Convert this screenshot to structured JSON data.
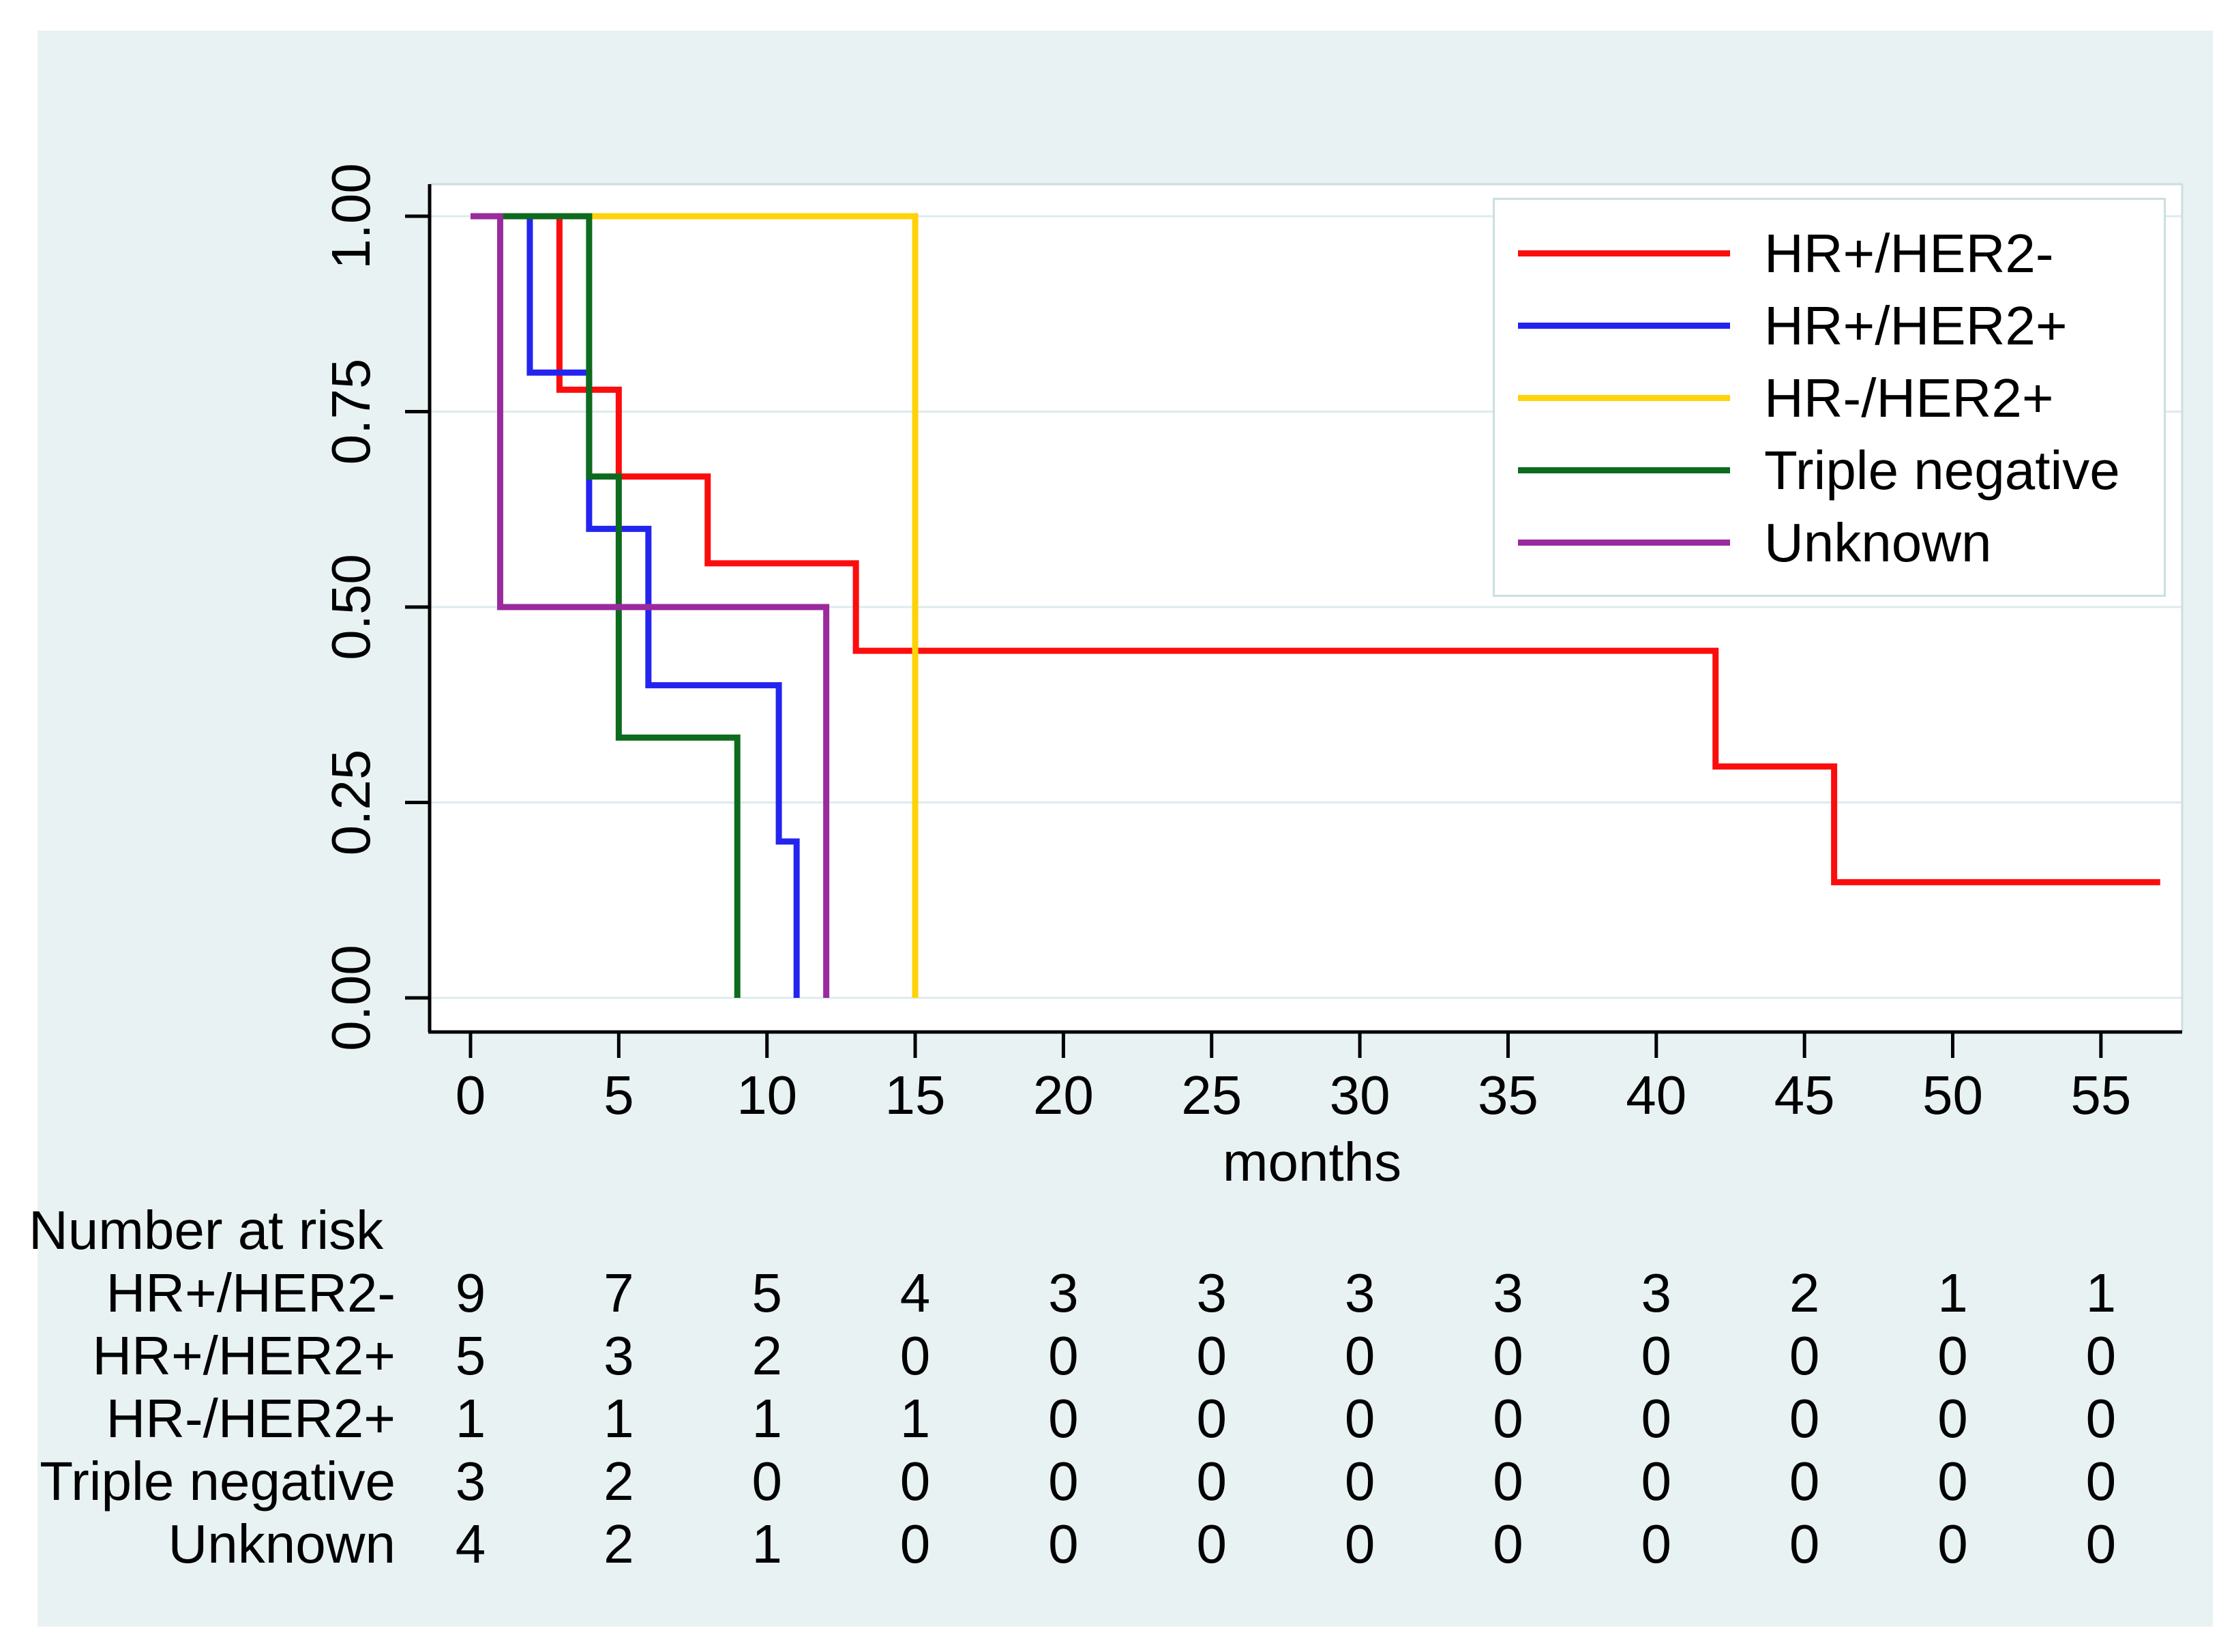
{
  "figure": {
    "background_color": "#ffffff",
    "panel_color": "#e8f2f3",
    "plot_background_color": "#ffffff",
    "grid_color": "#dcebed",
    "frame_color": "#ccdee0",
    "axis_color": "#000000",
    "text_color": "#000000"
  },
  "chart_data": {
    "type": "line",
    "subtype": "kaplan-meier-step",
    "title": "",
    "xlabel": "months",
    "ylabel": "",
    "xlim": [
      0,
      58
    ],
    "ylim": [
      0,
      1
    ],
    "grid": "horizontal",
    "legend_position": "top-right",
    "xticks": [
      0,
      5,
      10,
      15,
      20,
      25,
      30,
      35,
      40,
      45,
      50,
      55
    ],
    "yticks": [
      {
        "value": 1.0,
        "label": "1.00"
      },
      {
        "value": 0.75,
        "label": "0.75"
      },
      {
        "value": 0.5,
        "label": "0.50"
      },
      {
        "value": 0.25,
        "label": "0.25"
      },
      {
        "value": 0.0,
        "label": "0.00"
      }
    ],
    "series": [
      {
        "name": "HR+/HER2-",
        "color": "#fb0d0d",
        "points": [
          [
            0,
            1
          ],
          [
            3,
            1
          ],
          [
            3,
            0.778
          ],
          [
            5,
            0.778
          ],
          [
            5,
            0.667
          ],
          [
            8,
            0.667
          ],
          [
            8,
            0.556
          ],
          [
            13,
            0.556
          ],
          [
            13,
            0.444
          ],
          [
            42,
            0.444
          ],
          [
            42,
            0.296
          ],
          [
            46,
            0.296
          ],
          [
            46,
            0.148
          ],
          [
            57,
            0.148
          ]
        ]
      },
      {
        "name": "HR+/HER2+",
        "color": "#2424f0",
        "points": [
          [
            0,
            1
          ],
          [
            2,
            1
          ],
          [
            2,
            0.8
          ],
          [
            4,
            0.8
          ],
          [
            4,
            0.6
          ],
          [
            6,
            0.6
          ],
          [
            6,
            0.4
          ],
          [
            10.4,
            0.4
          ],
          [
            10.4,
            0.2
          ],
          [
            11,
            0.2
          ],
          [
            11,
            0
          ]
        ]
      },
      {
        "name": "HR-/HER2+",
        "color": "#ffd20a",
        "points": [
          [
            0,
            1
          ],
          [
            15,
            1
          ],
          [
            15,
            0
          ]
        ]
      },
      {
        "name": "Triple negative",
        "color": "#0e6b1e",
        "points": [
          [
            0,
            1
          ],
          [
            4,
            1
          ],
          [
            4,
            0.667
          ],
          [
            5,
            0.667
          ],
          [
            5,
            0.333
          ],
          [
            9,
            0.333
          ],
          [
            9,
            0
          ]
        ]
      },
      {
        "name": "Unknown",
        "color": "#9a2a9e",
        "points": [
          [
            0,
            1
          ],
          [
            1,
            1
          ],
          [
            1,
            0.5
          ],
          [
            12,
            0.5
          ],
          [
            12,
            0
          ]
        ]
      }
    ]
  },
  "risk_table": {
    "title": "Number at risk",
    "times": [
      0,
      5,
      10,
      15,
      20,
      25,
      30,
      35,
      40,
      45,
      50,
      55
    ],
    "rows": [
      {
        "label": "HR+/HER2-",
        "counts": [
          9,
          7,
          5,
          4,
          3,
          3,
          3,
          3,
          3,
          2,
          1,
          1
        ]
      },
      {
        "label": "HR+/HER2+",
        "counts": [
          5,
          3,
          2,
          0,
          0,
          0,
          0,
          0,
          0,
          0,
          0,
          0
        ]
      },
      {
        "label": "HR-/HER2+",
        "counts": [
          1,
          1,
          1,
          1,
          0,
          0,
          0,
          0,
          0,
          0,
          0,
          0
        ]
      },
      {
        "label": "Triple negative",
        "counts": [
          3,
          2,
          0,
          0,
          0,
          0,
          0,
          0,
          0,
          0,
          0,
          0
        ]
      },
      {
        "label": "Unknown",
        "counts": [
          4,
          2,
          1,
          0,
          0,
          0,
          0,
          0,
          0,
          0,
          0,
          0
        ]
      }
    ]
  }
}
